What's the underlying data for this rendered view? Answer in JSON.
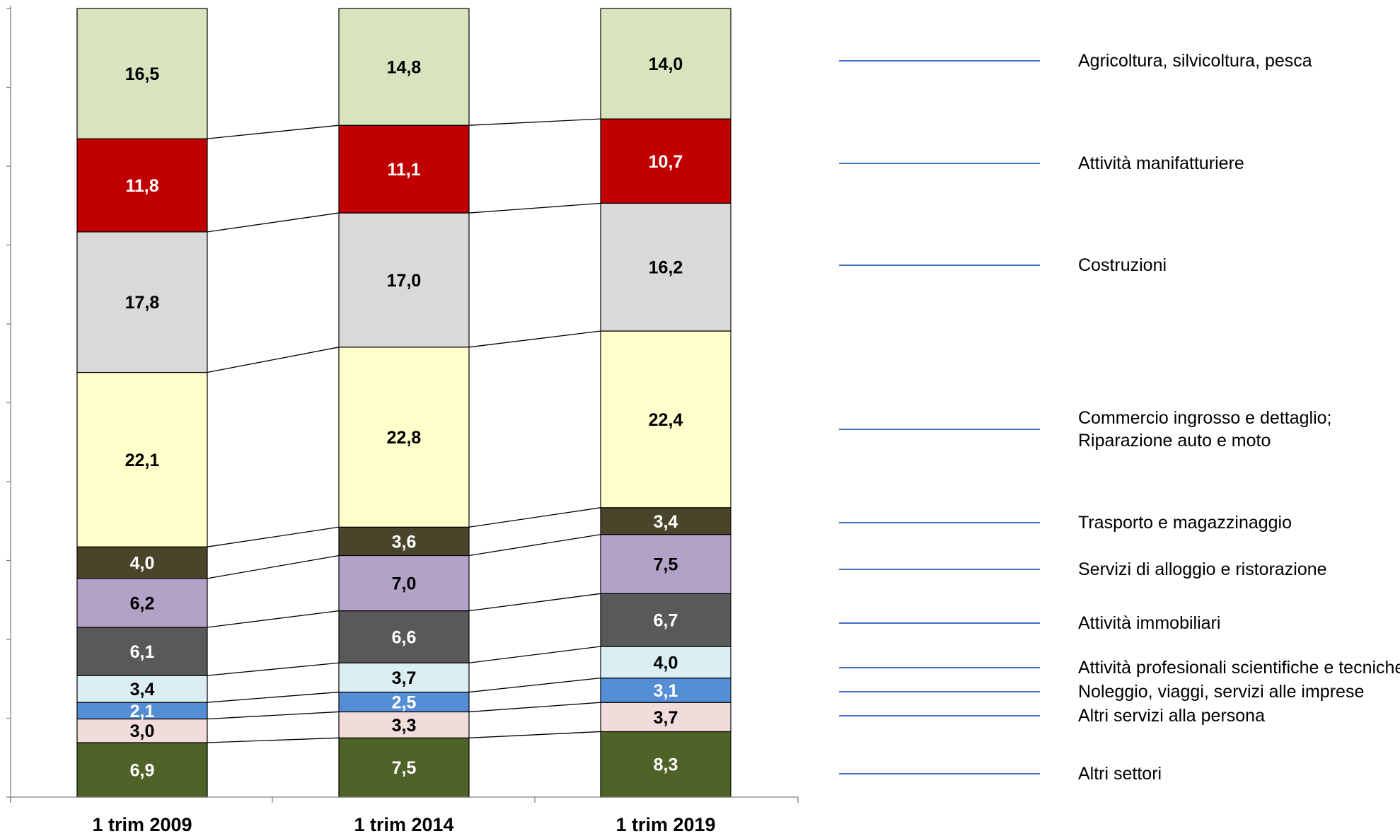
{
  "chart_data": {
    "type": "bar",
    "stacked": true,
    "normalized": true,
    "ylim": [
      0,
      100
    ],
    "grid": false,
    "legend_position": "right",
    "categories": [
      "1 trim 2009",
      "1 trim 2014",
      "1 trim 2019"
    ],
    "series": [
      {
        "name": "Altri settori",
        "color": "#4F6228",
        "values": [
          6.9,
          7.5,
          8.3
        ],
        "labels": [
          "6,9",
          "7,5",
          "8,3"
        ],
        "label_color": "#ffffff"
      },
      {
        "name": "Altri servizi alla persona",
        "color": "#F2DCDB",
        "values": [
          3.0,
          3.3,
          3.7
        ],
        "labels": [
          "3,0",
          "3,3",
          "3,7"
        ],
        "label_color": "#000000"
      },
      {
        "name": "Noleggio, viaggi, servizi alle imprese",
        "color": "#558ED5",
        "values": [
          2.1,
          2.5,
          3.1
        ],
        "labels": [
          "2,1",
          "2,5",
          "3,1"
        ],
        "label_color": "#ffffff"
      },
      {
        "name": "Attività profesionali scientifiche e tecniche",
        "color": "#DBEEF4",
        "values": [
          3.4,
          3.7,
          4.0
        ],
        "labels": [
          "3,4",
          "3,7",
          "4,0"
        ],
        "label_color": "#000000"
      },
      {
        "name": "Attività immobiliari",
        "color": "#595959",
        "values": [
          6.1,
          6.6,
          6.7
        ],
        "labels": [
          "6,1",
          "6,6",
          "6,7"
        ],
        "label_color": "#ffffff"
      },
      {
        "name": "Servizi di alloggio e ristorazione",
        "color": "#B3A2C7",
        "values": [
          6.2,
          7.0,
          7.5
        ],
        "labels": [
          "6,2",
          "7,0",
          "7,5"
        ],
        "label_color": "#000000"
      },
      {
        "name": "Trasporto e magazzinaggio",
        "color": "#4A452A",
        "values": [
          4.0,
          3.6,
          3.4
        ],
        "labels": [
          "4,0",
          "3,6",
          "3,4"
        ],
        "label_color": "#ffffff"
      },
      {
        "name": "Commercio ingrosso e dettaglio; Riparazione auto e moto",
        "legend_lines": [
          "Commercio ingrosso e dettaglio;",
          "Riparazione auto e moto"
        ],
        "color": "#FFFFCC",
        "values": [
          22.1,
          22.8,
          22.4
        ],
        "labels": [
          "22,1",
          "22,8",
          "22,4"
        ],
        "label_color": "#000000"
      },
      {
        "name": "Costruzioni",
        "color": "#D9D9D9",
        "values": [
          17.8,
          17.0,
          16.2
        ],
        "labels": [
          "17,8",
          "17,0",
          "16,2"
        ],
        "label_color": "#000000"
      },
      {
        "name": "Attività manifatturiere",
        "color": "#C00000",
        "values": [
          11.8,
          11.1,
          10.7
        ],
        "labels": [
          "11,8",
          "11,1",
          "10,7"
        ],
        "label_color": "#ffffff"
      },
      {
        "name": "Agricoltura, silvicoltura, pesca",
        "color": "#D7E4BD",
        "values": [
          16.5,
          14.8,
          14.0
        ],
        "labels": [
          "16,5",
          "14,8",
          "14,0"
        ],
        "label_color": "#000000"
      }
    ],
    "legend_line_color": "#4472C4",
    "axis_color": "#808080"
  }
}
